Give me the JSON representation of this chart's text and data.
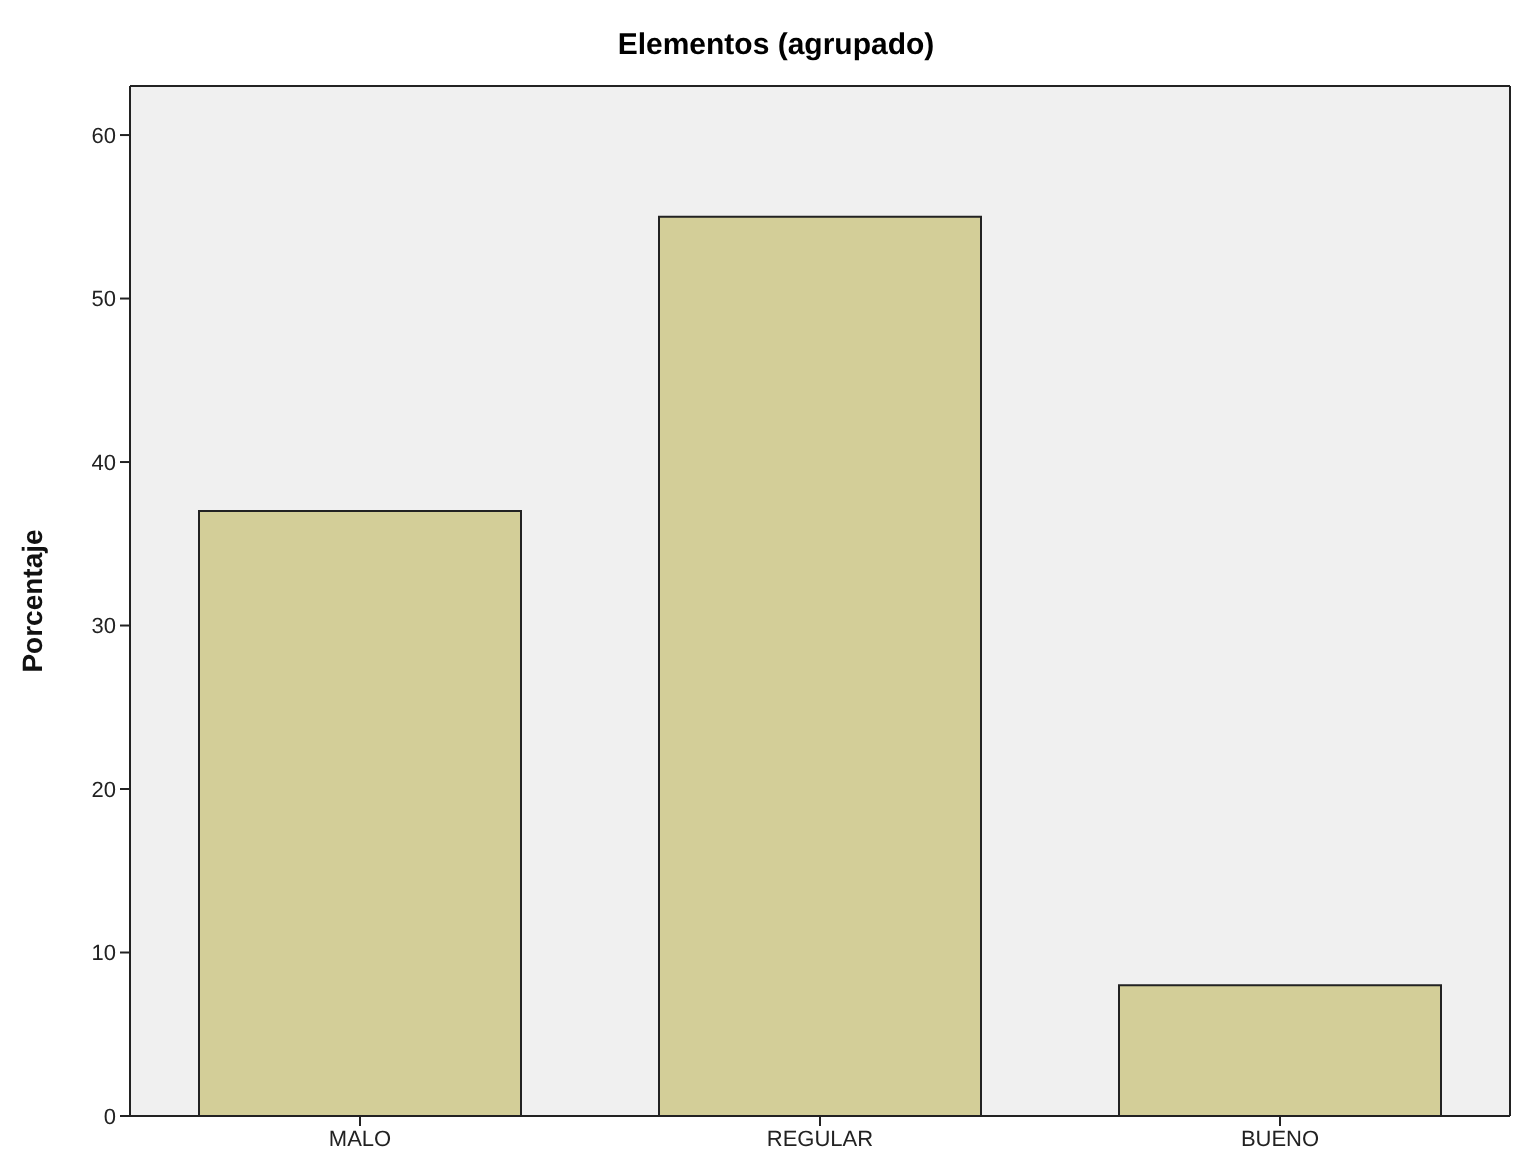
{
  "chart_data": {
    "type": "bar",
    "title": "Elementos (agrupado)",
    "ylabel": "Porcentaje",
    "categories": [
      "MALO",
      "REGULAR",
      "BUENO"
    ],
    "values": [
      37,
      55,
      8
    ],
    "color": "#d3ce98",
    "ylim": [
      0,
      63
    ],
    "yticks": [
      0,
      10,
      20,
      30,
      40,
      50,
      60
    ],
    "grid": false
  }
}
